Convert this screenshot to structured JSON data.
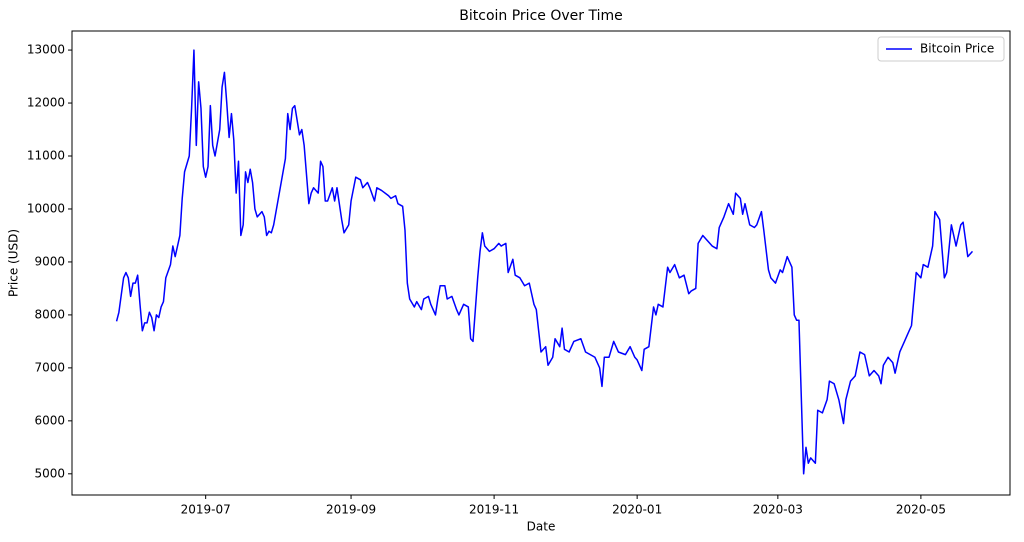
{
  "chart_data": {
    "type": "line",
    "title": "Bitcoin Price Over Time",
    "x_label": "Date",
    "y_label": "Price (USD)",
    "x": [
      0,
      1,
      3,
      4,
      5,
      6,
      7,
      8,
      9,
      10,
      11,
      12,
      13,
      14,
      15,
      16,
      17,
      18,
      19,
      20,
      21,
      23,
      24,
      25,
      27,
      28,
      29,
      31,
      32,
      33,
      34,
      35,
      36,
      37,
      38,
      39,
      40,
      41,
      42,
      44,
      45,
      46,
      47,
      48,
      49,
      50,
      51,
      52,
      53,
      54,
      55,
      56,
      57,
      58,
      59,
      60,
      62,
      63,
      64,
      65,
      66,
      67,
      69,
      70,
      72,
      73,
      74,
      75,
      76,
      78,
      79,
      80,
      82,
      83,
      84,
      86,
      87,
      88,
      89,
      90,
      92,
      93,
      94,
      96,
      97,
      99,
      100,
      102,
      104,
      105,
      107,
      108,
      110,
      111,
      113,
      116,
      117,
      119,
      120,
      122,
      123,
      124,
      125,
      127,
      128,
      130,
      131,
      133,
      134,
      136,
      137,
      138,
      140,
      141,
      143,
      145,
      146,
      148,
      150,
      151,
      152,
      154,
      155,
      156,
      157,
      159,
      161,
      163,
      164,
      166,
      167,
      169,
      170,
      172,
      174,
      176,
      178,
      179,
      180,
      181,
      183,
      184,
      186,
      187,
      189,
      190,
      191,
      193,
      195,
      198,
      200,
      202,
      204,
      206,
      207,
      208,
      210,
      212,
      214,
      217,
      219,
      221,
      222,
      224,
      225,
      227,
      229,
      230,
      231,
      233,
      235,
      236,
      238,
      240,
      242,
      244,
      245,
      247,
      248,
      250,
      252,
      254,
      256,
      257,
      259,
      261,
      263,
      264,
      266,
      267,
      268,
      270,
      272,
      273,
      275,
      276,
      278,
      279,
      281,
      283,
      284,
      286,
      288,
      289,
      290,
      291,
      293,
      294,
      295,
      296,
      298,
      299,
      301,
      303,
      304,
      306,
      308,
      310,
      311,
      313,
      315,
      317,
      319,
      321,
      323,
      325,
      326,
      327,
      329,
      331,
      332,
      334,
      336,
      337,
      339,
      341,
      343,
      344,
      346,
      348,
      349,
      351,
      353,
      354,
      356,
      358,
      360,
      361,
      363,
      365
    ],
    "series": [
      {
        "name": "Bitcoin Price",
        "color": "#0000ff",
        "values": [
          7880,
          8050,
          8700,
          8800,
          8700,
          8350,
          8600,
          8600,
          8750,
          8200,
          7700,
          7850,
          7850,
          8050,
          7950,
          7700,
          8000,
          7950,
          8150,
          8250,
          8700,
          8950,
          9300,
          9100,
          9500,
          10200,
          10700,
          11000,
          11900,
          13000,
          11200,
          12400,
          11900,
          10800,
          10600,
          10800,
          11950,
          11200,
          11000,
          11500,
          12300,
          12580,
          12000,
          11350,
          11800,
          11300,
          10300,
          10900,
          9500,
          9700,
          10700,
          10500,
          10750,
          10500,
          10000,
          9850,
          9950,
          9850,
          9500,
          9580,
          9550,
          9700,
          10200,
          10450,
          10950,
          11800,
          11500,
          11900,
          11950,
          11400,
          11500,
          11200,
          10100,
          10300,
          10400,
          10300,
          10900,
          10800,
          10150,
          10150,
          10400,
          10150,
          10400,
          9800,
          9550,
          9700,
          10150,
          10600,
          10550,
          10400,
          10500,
          10400,
          10150,
          10400,
          10350,
          10250,
          10200,
          10250,
          10100,
          10050,
          9600,
          8600,
          8300,
          8150,
          8250,
          8100,
          8300,
          8350,
          8200,
          8000,
          8300,
          8550,
          8550,
          8300,
          8350,
          8100,
          8000,
          8200,
          8150,
          7550,
          7500,
          8700,
          9200,
          9550,
          9300,
          9200,
          9250,
          9350,
          9300,
          9350,
          8800,
          9050,
          8750,
          8700,
          8550,
          8600,
          8200,
          8100,
          7700,
          7300,
          7400,
          7050,
          7200,
          7550,
          7400,
          7750,
          7350,
          7300,
          7500,
          7550,
          7300,
          7250,
          7200,
          7000,
          6650,
          7200,
          7200,
          7500,
          7300,
          7250,
          7400,
          7200,
          7150,
          6950,
          7350,
          7400,
          8150,
          8000,
          8200,
          8150,
          8900,
          8800,
          8950,
          8700,
          8750,
          8400,
          8450,
          8500,
          9350,
          9500,
          9400,
          9300,
          9250,
          9650,
          9850,
          10100,
          9900,
          10300,
          10200,
          9900,
          10100,
          9700,
          9650,
          9700,
          9950,
          9600,
          8850,
          8700,
          8600,
          8850,
          8800,
          9100,
          8900,
          8000,
          7900,
          7900,
          5000,
          5500,
          5200,
          5300,
          5200,
          6200,
          6150,
          6400,
          6750,
          6700,
          6400,
          5950,
          6400,
          6750,
          6850,
          7300,
          7250,
          6850,
          6950,
          6850,
          6700,
          7050,
          7200,
          7100,
          6900,
          7300,
          7500,
          7600,
          7800,
          8800,
          8700,
          8950,
          8900,
          9300,
          9950,
          9800,
          8700,
          8800,
          9700,
          9300,
          9700,
          9750,
          9100,
          9200
        ]
      }
    ],
    "xlim": [
      -19,
      381
    ],
    "xticks": [
      {
        "value": 38,
        "label": "2019-07"
      },
      {
        "value": 100,
        "label": "2019-09"
      },
      {
        "value": 161,
        "label": "2019-11"
      },
      {
        "value": 222,
        "label": "2020-01"
      },
      {
        "value": 282,
        "label": "2020-03"
      },
      {
        "value": 343,
        "label": "2020-05"
      }
    ],
    "ylim": [
      4600,
      13360
    ],
    "yticks": [
      5000,
      6000,
      7000,
      8000,
      9000,
      10000,
      11000,
      12000,
      13000
    ],
    "legend": "upper right",
    "grid": false
  }
}
